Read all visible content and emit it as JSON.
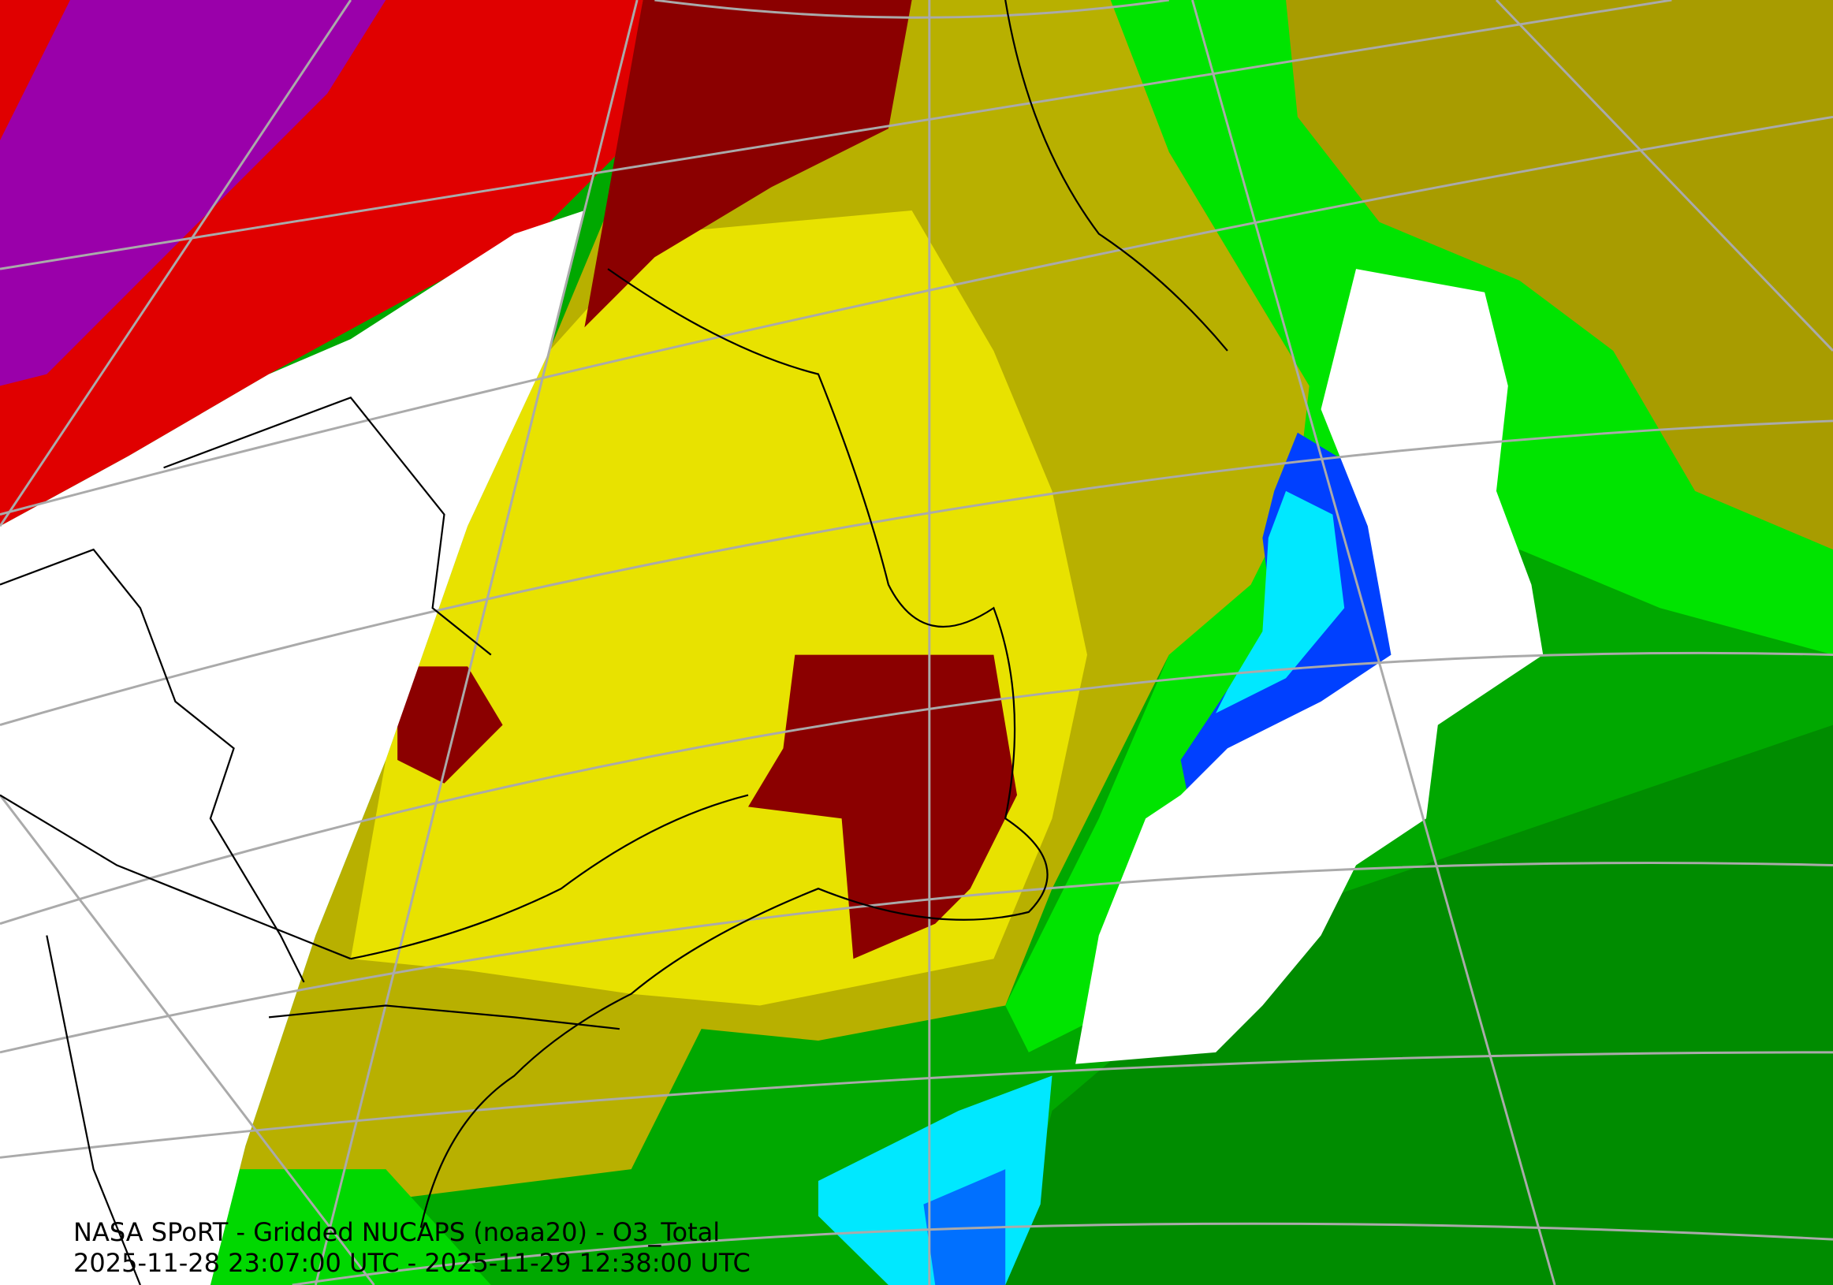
{
  "title": "NASA SPoRT - Gridded NUCAPS (noaa20) - O3_Total",
  "time_range": "2025-11-28 23:07:00 UTC - 2025-11-29 12:38:00 UTC",
  "colors": {
    "no_data": "#ffffff",
    "dark_green": "#00a000",
    "green": "#00e000",
    "olive": "#a8a000",
    "yellow": "#e8e400",
    "dark_red": "#8b0000",
    "red": "#ee0000",
    "purple": "#9900aa",
    "cyan": "#00e8ff",
    "blue": "#0040ff",
    "graticule": "#aaaaaa",
    "coastline": "#000000"
  }
}
